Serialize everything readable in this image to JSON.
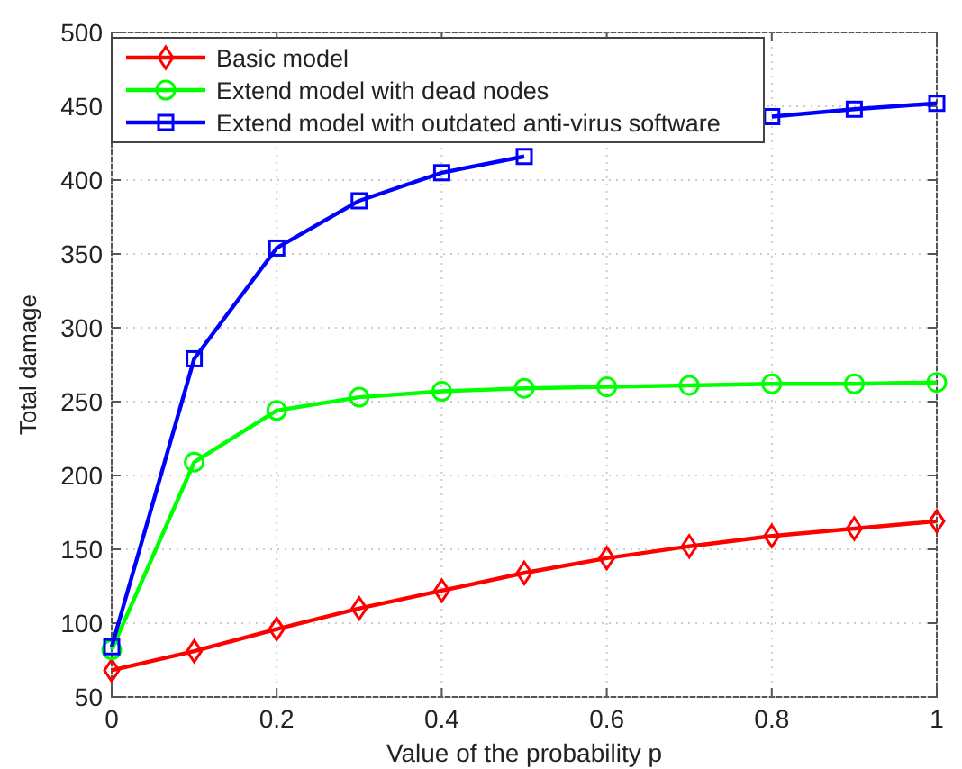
{
  "chart_data": {
    "type": "line",
    "xlabel": "Value of the probability p",
    "ylabel": "Total damage",
    "x": [
      0,
      0.1,
      0.2,
      0.3,
      0.4,
      0.5,
      0.6,
      0.7,
      0.8,
      0.9,
      1
    ],
    "series": [
      {
        "name": "Basic model",
        "color": "#ff0000",
        "marker": "diamond",
        "values": [
          68,
          81,
          96,
          110,
          122,
          134,
          144,
          152,
          159,
          164,
          169
        ]
      },
      {
        "name": "Extend model with dead nodes",
        "color": "#00ff00",
        "marker": "circle",
        "values": [
          82,
          209,
          244,
          253,
          257,
          259,
          260,
          261,
          262,
          262,
          263
        ]
      },
      {
        "name": "Extend model with outdated anti-virus software",
        "color": "#0000ff",
        "marker": "square",
        "values": [
          84,
          279,
          354,
          386,
          405,
          416,
          null,
          null,
          443,
          448,
          452
        ]
      }
    ],
    "xlim": [
      0,
      1
    ],
    "xticks": [
      0,
      0.2,
      0.4,
      0.6,
      0.8,
      1
    ],
    "ylim": [
      50,
      500
    ],
    "yticks": [
      50,
      100,
      150,
      200,
      250,
      300,
      350,
      400,
      450,
      500
    ],
    "grid": true,
    "legend": "top left",
    "line_style": "solid"
  }
}
